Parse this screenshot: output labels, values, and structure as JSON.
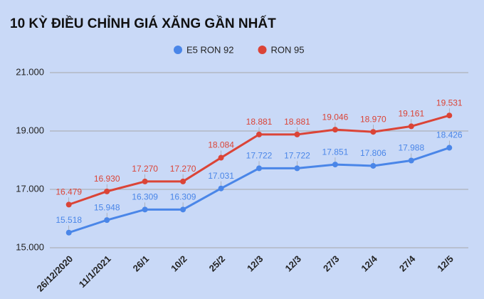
{
  "chart_data": {
    "type": "line",
    "title": "10 KỲ ĐIỀU CHỈNH GIÁ XĂNG GẦN NHẤT",
    "categories": [
      "26/12/2020",
      "11/1/2021",
      "26/1",
      "10/2",
      "25/2",
      "12/3",
      "12/3",
      "27/3",
      "12/4",
      "27/4",
      "12/5"
    ],
    "series": [
      {
        "name": "E5 RON 92",
        "color": "#4a86e8",
        "values": [
          15518,
          15948,
          16309,
          16309,
          17031,
          17722,
          17722,
          17851,
          17806,
          17988,
          18426
        ],
        "value_labels": [
          "15.518",
          "15.948",
          "16.309",
          "16.309",
          "17.031",
          "17.722",
          "17.722",
          "17.851",
          "17.806",
          "17.988",
          "18.426"
        ]
      },
      {
        "name": "RON 95",
        "color": "#db4437",
        "values": [
          16479,
          16930,
          17270,
          17270,
          18084,
          18881,
          18881,
          19046,
          18970,
          19161,
          19531
        ],
        "value_labels": [
          "16.479",
          "16.930",
          "17.270",
          "17.270",
          "18.084",
          "18.881",
          "18.881",
          "19.046",
          "18.970",
          "19.161",
          "19.531"
        ]
      }
    ],
    "ylim": [
      15000,
      21000
    ],
    "yticks": [
      {
        "value": 15000,
        "label": "15.000"
      },
      {
        "value": 17000,
        "label": "17.000"
      },
      {
        "value": 19000,
        "label": "19.000"
      },
      {
        "value": 21000,
        "label": "21.000"
      }
    ],
    "grid": true,
    "legend": "top"
  }
}
